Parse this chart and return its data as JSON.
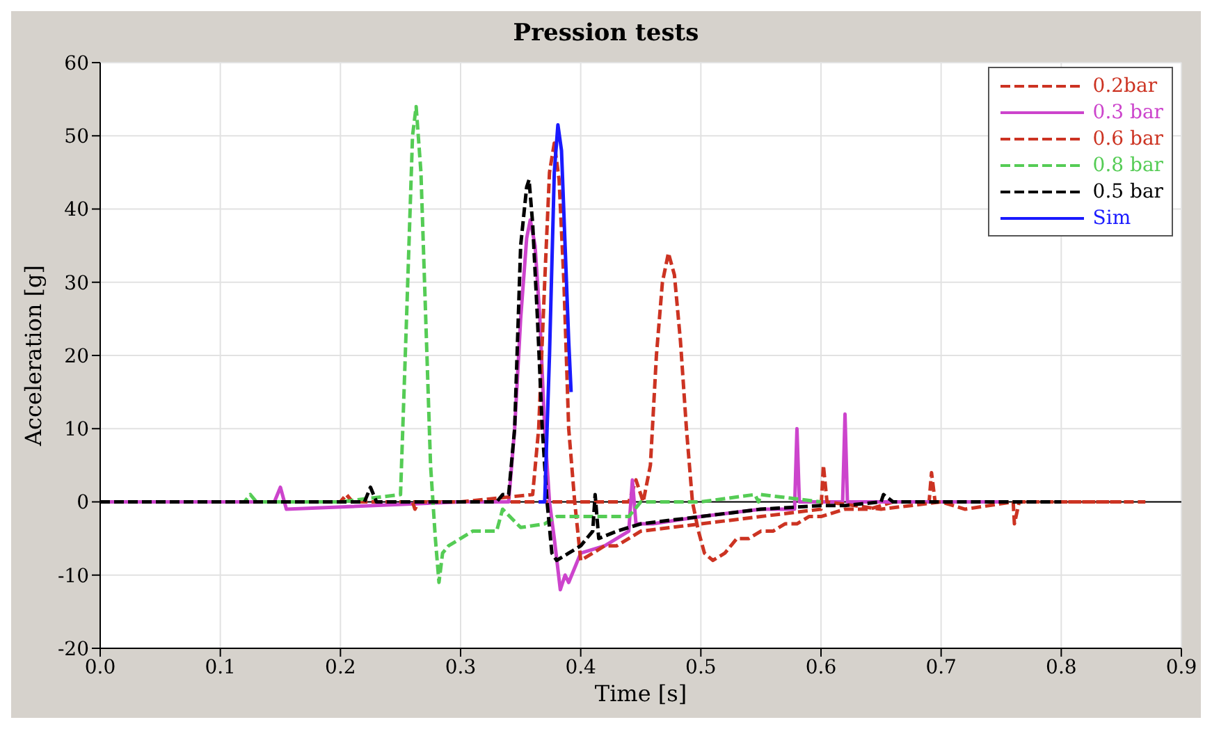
{
  "chart_data": {
    "type": "line",
    "title": "Pression tests",
    "xlabel": "Time [s]",
    "ylabel": "Acceleration [g]",
    "xlim": [
      0,
      0.9
    ],
    "xticks": [
      {
        "value": 0,
        "label": "0.0"
      },
      0.1,
      0.2,
      0.3,
      0.4,
      0.5,
      0.6,
      0.7,
      0.8,
      {
        "value": 0.9,
        "label": "0.9"
      }
    ],
    "ylim": [
      -20,
      60
    ],
    "yticks": [
      -20,
      -10,
      0,
      10,
      20,
      30,
      40,
      50,
      60
    ],
    "grid": true,
    "legend": "top right",
    "marker": "none",
    "ref_lines": [
      {
        "axis": "y",
        "value": 0,
        "color": "#000000"
      }
    ],
    "series": [
      {
        "name": "0.2bar",
        "color": "#cc3322",
        "line_style": "dashed",
        "x": [
          0,
          0.1,
          0.2,
          0.205,
          0.21,
          0.3,
          0.44,
          0.446,
          0.452,
          0.458,
          0.463,
          0.468,
          0.473,
          0.478,
          0.483,
          0.488,
          0.493,
          0.498,
          0.503,
          0.51,
          0.52,
          0.53,
          0.54,
          0.55,
          0.56,
          0.57,
          0.58,
          0.59,
          0.6,
          0.62,
          0.64,
          0.66,
          0.69,
          0.692,
          0.695,
          0.72,
          0.74,
          0.76,
          0.8,
          0.87
        ],
        "values": [
          0,
          0,
          0,
          1,
          0,
          0,
          0,
          3,
          0,
          5,
          20,
          30,
          34,
          31,
          22,
          10,
          0,
          -4,
          -7,
          -8,
          -7,
          -5,
          -5,
          -4,
          -4,
          -3,
          -3,
          -2,
          -2,
          -1,
          -1,
          0,
          0,
          4,
          0,
          0,
          0,
          0,
          0,
          0
        ]
      },
      {
        "name": "0.3 bar",
        "color": "#cc44cc",
        "line_style": "solid",
        "x": [
          0,
          0.145,
          0.15,
          0.155,
          0.3,
          0.34,
          0.345,
          0.35,
          0.355,
          0.358,
          0.362,
          0.366,
          0.37,
          0.374,
          0.378,
          0.383,
          0.387,
          0.39,
          0.395,
          0.4,
          0.42,
          0.44,
          0.443,
          0.446,
          0.46,
          0.5,
          0.55,
          0.578,
          0.58,
          0.582,
          0.618,
          0.62,
          0.622,
          0.65,
          0.7,
          0.75
        ],
        "values": [
          0,
          0,
          2,
          -1,
          0,
          0,
          10,
          25,
          36,
          38.5,
          35,
          25,
          10,
          0,
          -5,
          -12,
          -10,
          -11,
          -9,
          -7,
          -6,
          -4,
          3,
          -3,
          -3,
          -2,
          -1,
          -1,
          10,
          0,
          0,
          12,
          0,
          0,
          0,
          0
        ]
      },
      {
        "name": "0.6 bar",
        "color": "#cc3322",
        "line_style": "dashed",
        "x": [
          0,
          0.15,
          0.2,
          0.205,
          0.21,
          0.26,
          0.262,
          0.265,
          0.3,
          0.36,
          0.365,
          0.37,
          0.374,
          0.378,
          0.382,
          0.386,
          0.39,
          0.395,
          0.4,
          0.41,
          0.42,
          0.43,
          0.44,
          0.45,
          0.5,
          0.55,
          0.6,
          0.602,
          0.605,
          0.65,
          0.7,
          0.72,
          0.76,
          0.761,
          0.765,
          0.8,
          0.85
        ],
        "values": [
          0,
          0,
          0,
          1,
          0,
          0,
          -1,
          0,
          0,
          1,
          10,
          30,
          45,
          49,
          44,
          30,
          10,
          0,
          -8,
          -7,
          -6,
          -6,
          -5,
          -4,
          -3,
          -2,
          -1,
          5,
          0,
          -1,
          0,
          -1,
          0,
          -3,
          0,
          0,
          0
        ]
      },
      {
        "name": "0.8 bar",
        "color": "#55cc55",
        "line_style": "dashed",
        "x": [
          0,
          0.12,
          0.125,
          0.13,
          0.2,
          0.25,
          0.255,
          0.26,
          0.263,
          0.267,
          0.271,
          0.275,
          0.279,
          0.282,
          0.285,
          0.29,
          0.3,
          0.31,
          0.32,
          0.33,
          0.335,
          0.35,
          0.37,
          0.38,
          0.4,
          0.42,
          0.44,
          0.45,
          0.46,
          0.5,
          0.545,
          0.548,
          0.55,
          0.6
        ],
        "values": [
          0,
          0,
          1,
          0,
          0,
          1,
          25,
          50,
          54,
          45,
          25,
          5,
          -5,
          -11,
          -7,
          -6,
          -5,
          -4,
          -4,
          -4,
          -1,
          -3.5,
          -3,
          -2,
          -2,
          -2,
          -2,
          0,
          0,
          0,
          1,
          0,
          1,
          0
        ]
      },
      {
        "name": "0.5 bar",
        "color": "#000000",
        "line_style": "dashed",
        "x": [
          0,
          0.22,
          0.225,
          0.23,
          0.33,
          0.335,
          0.34,
          0.345,
          0.35,
          0.355,
          0.357,
          0.36,
          0.364,
          0.368,
          0.372,
          0.376,
          0.38,
          0.39,
          0.4,
          0.41,
          0.412,
          0.415,
          0.43,
          0.45,
          0.5,
          0.55,
          0.6,
          0.62,
          0.65,
          0.652,
          0.66,
          0.7,
          0.8
        ],
        "values": [
          0,
          0,
          2,
          0,
          0,
          1,
          1,
          10,
          35,
          43,
          44,
          38,
          25,
          10,
          0,
          -7,
          -8,
          -7,
          -6,
          -4,
          1,
          -5,
          -4,
          -3,
          -2,
          -1,
          -0.5,
          -0.5,
          0,
          1,
          0,
          0,
          0
        ]
      },
      {
        "name": "Sim",
        "color": "#1a1aff",
        "line_style": "solid",
        "x": [
          0.365,
          0.37,
          0.374,
          0.378,
          0.381,
          0.384,
          0.387,
          0.39,
          0.392
        ],
        "values": [
          0,
          0,
          20,
          45,
          51.5,
          48,
          35,
          22,
          15
        ]
      }
    ]
  }
}
